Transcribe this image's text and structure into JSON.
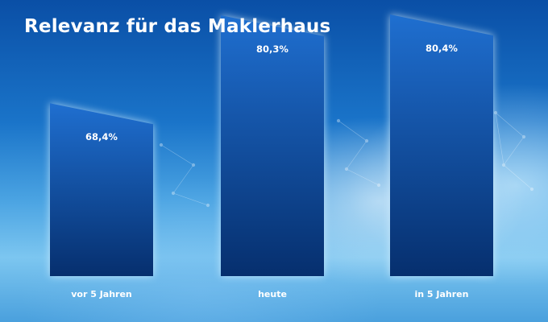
{
  "chart_data": {
    "type": "bar",
    "title": "Relevanz für das Maklerhaus",
    "categories": [
      "vor 5 Jahren",
      "heute",
      "in 5 Jahren"
    ],
    "values": [
      68.4,
      80.3,
      80.4
    ],
    "value_labels": [
      "68,4%",
      "80,3%",
      "80,4%"
    ],
    "xlabel": "",
    "ylabel": "",
    "grid": false,
    "legend": "none"
  },
  "colors": {
    "bar_top": "#1f6fd0",
    "bar_bottom": "#062f6e",
    "text": "#ffffff"
  }
}
